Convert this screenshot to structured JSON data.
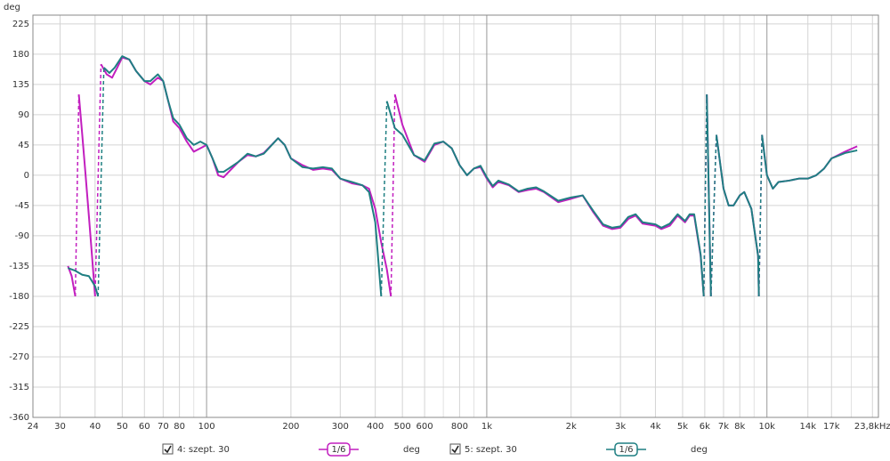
{
  "chart_data": {
    "type": "line",
    "y_label": "deg",
    "xscale": "log",
    "xlim": [
      24,
      25000
    ],
    "ylim": [
      -360,
      238
    ],
    "xticks": [
      24,
      30,
      40,
      50,
      60,
      70,
      80,
      100,
      200,
      300,
      400,
      500,
      600,
      800,
      {
        "value": 1000,
        "label": "1k"
      },
      {
        "value": 2000,
        "label": "2k"
      },
      {
        "value": 3000,
        "label": "3k"
      },
      {
        "value": 4000,
        "label": "4k"
      },
      {
        "value": 5000,
        "label": "5k"
      },
      {
        "value": 6000,
        "label": "6k"
      },
      {
        "value": 7000,
        "label": "7k"
      },
      {
        "value": 8000,
        "label": "8k"
      },
      {
        "value": 10000,
        "label": "10k"
      },
      {
        "value": 14000,
        "label": "14k"
      },
      {
        "value": 17000,
        "label": "17k"
      },
      {
        "value": 23800,
        "label": "23,8kHz"
      }
    ],
    "xgrid_minor": [
      90,
      700,
      900,
      9000,
      20000
    ],
    "yticks": [
      225,
      180,
      135,
      90,
      45,
      0,
      -45,
      -90,
      -135,
      -180,
      -225,
      -270,
      -315,
      -360
    ],
    "grid": true,
    "series": [
      {
        "name": "4: szept. 30",
        "color": "#c21fbf",
        "smoothing": "1/6",
        "unit": "deg",
        "x": [
          32,
          33,
          34,
          34,
          35,
          36,
          37,
          38,
          39,
          40,
          40,
          42,
          44,
          46,
          48,
          50,
          53,
          56,
          60,
          63,
          67,
          70,
          73,
          76,
          80,
          85,
          90,
          95,
          100,
          105,
          110,
          115,
          120,
          130,
          140,
          150,
          160,
          180,
          190,
          200,
          220,
          240,
          260,
          280,
          300,
          330,
          360,
          380,
          400,
          420,
          440,
          455,
          455,
          470,
          500,
          550,
          600,
          650,
          700,
          750,
          800,
          850,
          900,
          950,
          1000,
          1050,
          1100,
          1200,
          1300,
          1400,
          1500,
          1600,
          1800,
          2000,
          2200,
          2400,
          2600,
          2800,
          3000,
          3200,
          3400,
          3600,
          4000,
          4200,
          4500,
          4800,
          5100,
          5300,
          5500,
          5800,
          5950,
          5950,
          6100,
          6310,
          6310,
          6600,
          7000,
          7300,
          7600,
          8000,
          8300,
          8800,
          9300,
          9360,
          9360,
          9600,
          10000,
          10500,
          11000,
          12000,
          13000,
          14000,
          15000,
          16000,
          17000,
          19000,
          21000
        ],
        "values": [
          -135,
          -150,
          -180,
          null,
          120,
          60,
          0,
          -60,
          -120,
          -180,
          null,
          165,
          150,
          145,
          160,
          175,
          172,
          155,
          140,
          135,
          145,
          140,
          110,
          80,
          70,
          50,
          35,
          40,
          45,
          25,
          0,
          -3,
          5,
          20,
          30,
          28,
          33,
          55,
          45,
          25,
          15,
          8,
          10,
          8,
          -5,
          -12,
          -15,
          -20,
          -50,
          -100,
          -140,
          -180,
          null,
          120,
          75,
          30,
          20,
          45,
          50,
          40,
          15,
          0,
          10,
          12,
          -5,
          -18,
          -10,
          -15,
          -25,
          -22,
          -20,
          -25,
          -40,
          -35,
          -30,
          -55,
          -75,
          -80,
          -78,
          -65,
          -60,
          -72,
          -75,
          -80,
          -75,
          -60,
          -70,
          -60,
          -60,
          -120,
          -180,
          null,
          120,
          -180,
          null,
          60,
          -20,
          -45,
          -45,
          -30,
          -25,
          -50,
          -120,
          -180,
          null,
          60,
          0,
          -20,
          -10,
          -8,
          -5,
          -5,
          0,
          10,
          25,
          35,
          43
        ]
      },
      {
        "name": "5: szept. 30",
        "color": "#1f7f82",
        "smoothing": "1/6",
        "unit": "deg",
        "x": [
          32,
          34,
          36,
          38,
          40,
          41,
          41,
          43,
          45,
          47,
          50,
          53,
          56,
          60,
          63,
          67,
          70,
          73,
          76,
          80,
          85,
          90,
          95,
          100,
          105,
          110,
          115,
          120,
          130,
          140,
          150,
          160,
          180,
          190,
          200,
          220,
          240,
          260,
          280,
          300,
          330,
          360,
          380,
          400,
          420,
          420,
          440,
          470,
          500,
          550,
          600,
          650,
          700,
          750,
          800,
          850,
          900,
          950,
          1000,
          1050,
          1100,
          1200,
          1300,
          1400,
          1500,
          1600,
          1800,
          2000,
          2200,
          2400,
          2600,
          2800,
          3000,
          3200,
          3400,
          3600,
          4000,
          4200,
          4500,
          4800,
          5100,
          5300,
          5500,
          5800,
          5950,
          5950,
          6100,
          6310,
          6310,
          6600,
          7000,
          7300,
          7600,
          8000,
          8300,
          8800,
          9300,
          9360,
          9360,
          9600,
          10000,
          10500,
          11000,
          12000,
          13000,
          14000,
          15000,
          16000,
          17000,
          19000,
          21000
        ],
        "values": [
          -138,
          -142,
          -148,
          -150,
          -165,
          -180,
          null,
          160,
          152,
          160,
          177,
          172,
          155,
          140,
          140,
          150,
          140,
          110,
          85,
          75,
          55,
          45,
          50,
          45,
          25,
          5,
          5,
          10,
          20,
          32,
          28,
          32,
          55,
          45,
          25,
          12,
          10,
          12,
          10,
          -5,
          -10,
          -15,
          -25,
          -70,
          -180,
          null,
          110,
          70,
          60,
          30,
          22,
          47,
          50,
          40,
          15,
          0,
          10,
          14,
          -3,
          -16,
          -8,
          -14,
          -24,
          -20,
          -18,
          -24,
          -38,
          -33,
          -30,
          -53,
          -73,
          -78,
          -76,
          -62,
          -58,
          -70,
          -73,
          -78,
          -72,
          -58,
          -68,
          -58,
          -58,
          -118,
          -180,
          null,
          120,
          -180,
          null,
          60,
          -20,
          -45,
          -45,
          -30,
          -25,
          -50,
          -120,
          -180,
          null,
          60,
          0,
          -20,
          -10,
          -8,
          -5,
          -5,
          0,
          10,
          25,
          33,
          37
        ]
      }
    ]
  }
}
